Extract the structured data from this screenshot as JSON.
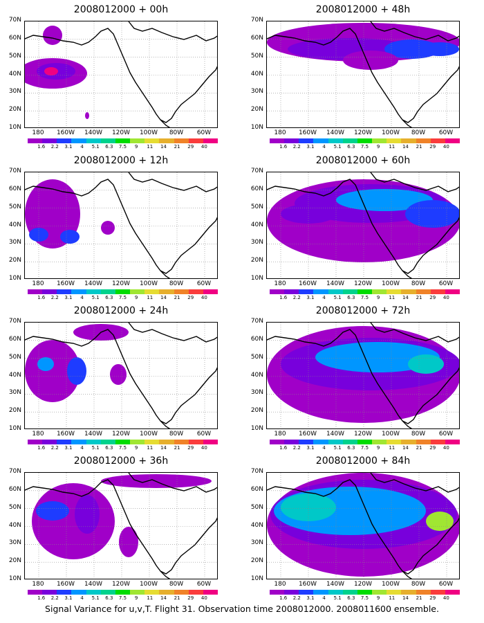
{
  "figure": {
    "caption": "Signal Variance for u,v,T. Flight 31. Observation time 2008012000. 2008011600 ensemble.",
    "lat_labels": [
      "70N",
      "60N",
      "50N",
      "40N",
      "30N",
      "20N",
      "10N"
    ],
    "lon_labels": [
      "180",
      "160W",
      "140W",
      "120W",
      "100W",
      "80W",
      "60W"
    ],
    "colorbar": {
      "levels": [
        "1.6",
        "2.2",
        "3.1",
        "4",
        "5.1",
        "6.3",
        "7.5",
        "9",
        "11",
        "14",
        "21",
        "29",
        "40"
      ],
      "colors": [
        "#a000c8",
        "#7800dc",
        "#1e3cff",
        "#0096ff",
        "#00c8c8",
        "#00d28c",
        "#00dc00",
        "#a0e632",
        "#e6dc32",
        "#e6af2d",
        "#f08228",
        "#fa3c3c",
        "#f00082"
      ]
    },
    "panels": [
      {
        "title": "2008012000 + 00h"
      },
      {
        "title": "2008012000 + 48h"
      },
      {
        "title": "2008012000 + 12h"
      },
      {
        "title": "2008012000 + 60h"
      },
      {
        "title": "2008012000 + 24h"
      },
      {
        "title": "2008012000 + 72h"
      },
      {
        "title": "2008012000 + 36h"
      },
      {
        "title": "2008012000 + 84h"
      }
    ]
  }
}
